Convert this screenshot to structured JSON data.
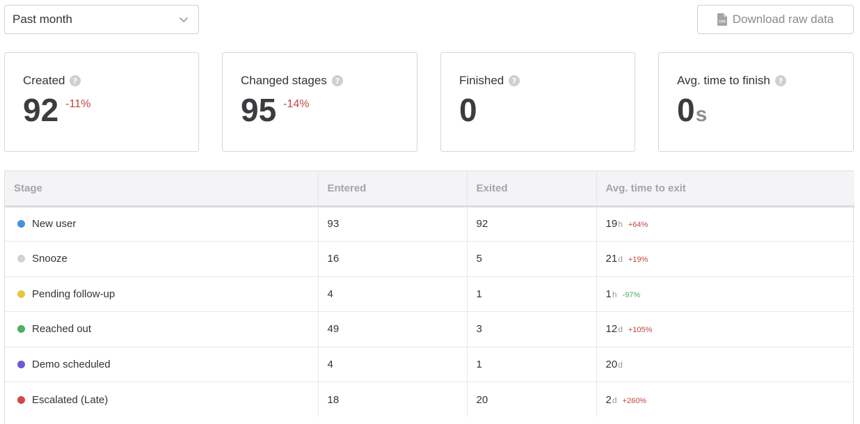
{
  "period": {
    "selected": "Past month"
  },
  "download": {
    "label": "Download raw data",
    "icon": "csv-file-icon"
  },
  "metrics": [
    {
      "title": "Created",
      "value": "92",
      "unit": "",
      "delta": "-11%"
    },
    {
      "title": "Changed stages",
      "value": "95",
      "unit": "",
      "delta": "-14%"
    },
    {
      "title": "Finished",
      "value": "0",
      "unit": "",
      "delta": ""
    },
    {
      "title": "Avg. time to finish",
      "value": "0",
      "unit": "s",
      "delta": ""
    }
  ],
  "table": {
    "headers": [
      "Stage",
      "Entered",
      "Exited",
      "Avg. time to exit"
    ],
    "rows": [
      {
        "stage": "New user",
        "color": "#4a90d9",
        "entered": "93",
        "exited": "92",
        "time": "19",
        "unit": "h",
        "delta": "+64%",
        "delta_color": "#c0443f"
      },
      {
        "stage": "Snooze",
        "color": "#d3d3d7",
        "entered": "16",
        "exited": "5",
        "time": "21",
        "unit": "d",
        "delta": "+19%",
        "delta_color": "#c0443f"
      },
      {
        "stage": "Pending follow-up",
        "color": "#e8c445",
        "entered": "4",
        "exited": "1",
        "time": "1",
        "unit": "h",
        "delta": "-97%",
        "delta_color": "#4caa5a"
      },
      {
        "stage": "Reached out",
        "color": "#4fae62",
        "entered": "49",
        "exited": "3",
        "time": "12",
        "unit": "d",
        "delta": "+105%",
        "delta_color": "#c0443f"
      },
      {
        "stage": "Demo scheduled",
        "color": "#7156d6",
        "entered": "4",
        "exited": "1",
        "time": "20",
        "unit": "d",
        "delta": "",
        "delta_color": "#c0443f"
      },
      {
        "stage": "Escalated (Late)",
        "color": "#cc4a4a",
        "entered": "18",
        "exited": "20",
        "time": "2",
        "unit": "d",
        "delta": "+260%",
        "delta_color": "#c0443f"
      }
    ]
  }
}
